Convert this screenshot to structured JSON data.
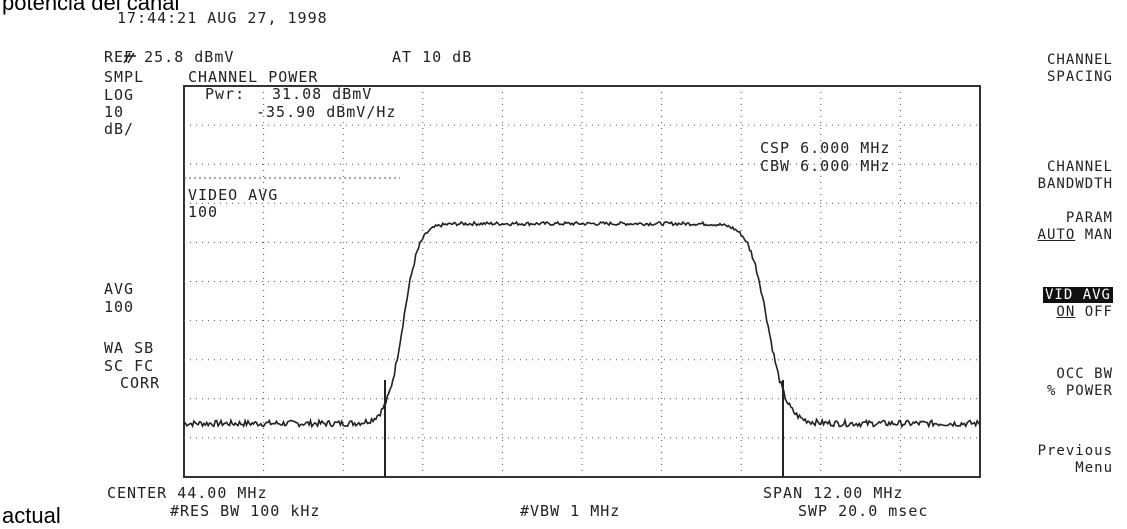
{
  "caption_top": "potencia del canal",
  "caption_bottom": "actual",
  "header": {
    "timestamp": "17:44:21 AUG 27, 1998",
    "ref_level": "REF 25.8 dBmV",
    "attenuation": "AT 10 dB"
  },
  "left_annotations": {
    "smpl": "SMPL",
    "log": "LOG",
    "scale_value": "10",
    "scale_unit": "dB/",
    "avg_label": "AVG",
    "avg_value": "100",
    "wa_sb": "WA SB",
    "sc_fc": "SC FC",
    "corr": "CORR"
  },
  "measurement": {
    "title": "CHANNEL POWER",
    "pwr_label": "Pwr:",
    "pwr_value": "31.08 dBmV",
    "psd_value": "-35.90 dBmV/Hz",
    "video_avg_label": "VIDEO AVG",
    "video_avg_value": "100",
    "csp": "CSP 6.000 MHz",
    "cbw": "CBW 6.000 MHz"
  },
  "footer": {
    "center": "CENTER 44.00 MHz",
    "span": "SPAN 12.00 MHz",
    "res_bw": "#RES BW 100 kHz",
    "vbw": "#VBW 1 MHz",
    "sweep": "SWP 20.0 msec"
  },
  "softkeys": {
    "channel_spacing": [
      "CHANNEL",
      "SPACING"
    ],
    "channel_bandwidth": [
      "CHANNEL",
      "BANDWDTH"
    ],
    "param_title": "PARAM",
    "param_auto": "AUTO",
    "param_man": "MAN",
    "vid_avg_title": "VID AVG",
    "vid_avg_on": "ON",
    "vid_avg_off": "OFF",
    "occ_bw": [
      "OCC BW",
      "% POWER"
    ],
    "previous_menu": [
      "Previous",
      "Menu"
    ]
  },
  "trace": {
    "center_mhz": 44.0,
    "span_mhz": 12.0,
    "ref_dbmv": 25.8,
    "db_per_div": 10,
    "noise_floor_dbmv": -60.5,
    "plateau_dbmv": -9.4,
    "channel_low_mhz": 41.0,
    "channel_high_mhz": 47.0
  },
  "colors": {
    "trace": "#222222",
    "grid": "#555555",
    "frame": "#333333"
  }
}
